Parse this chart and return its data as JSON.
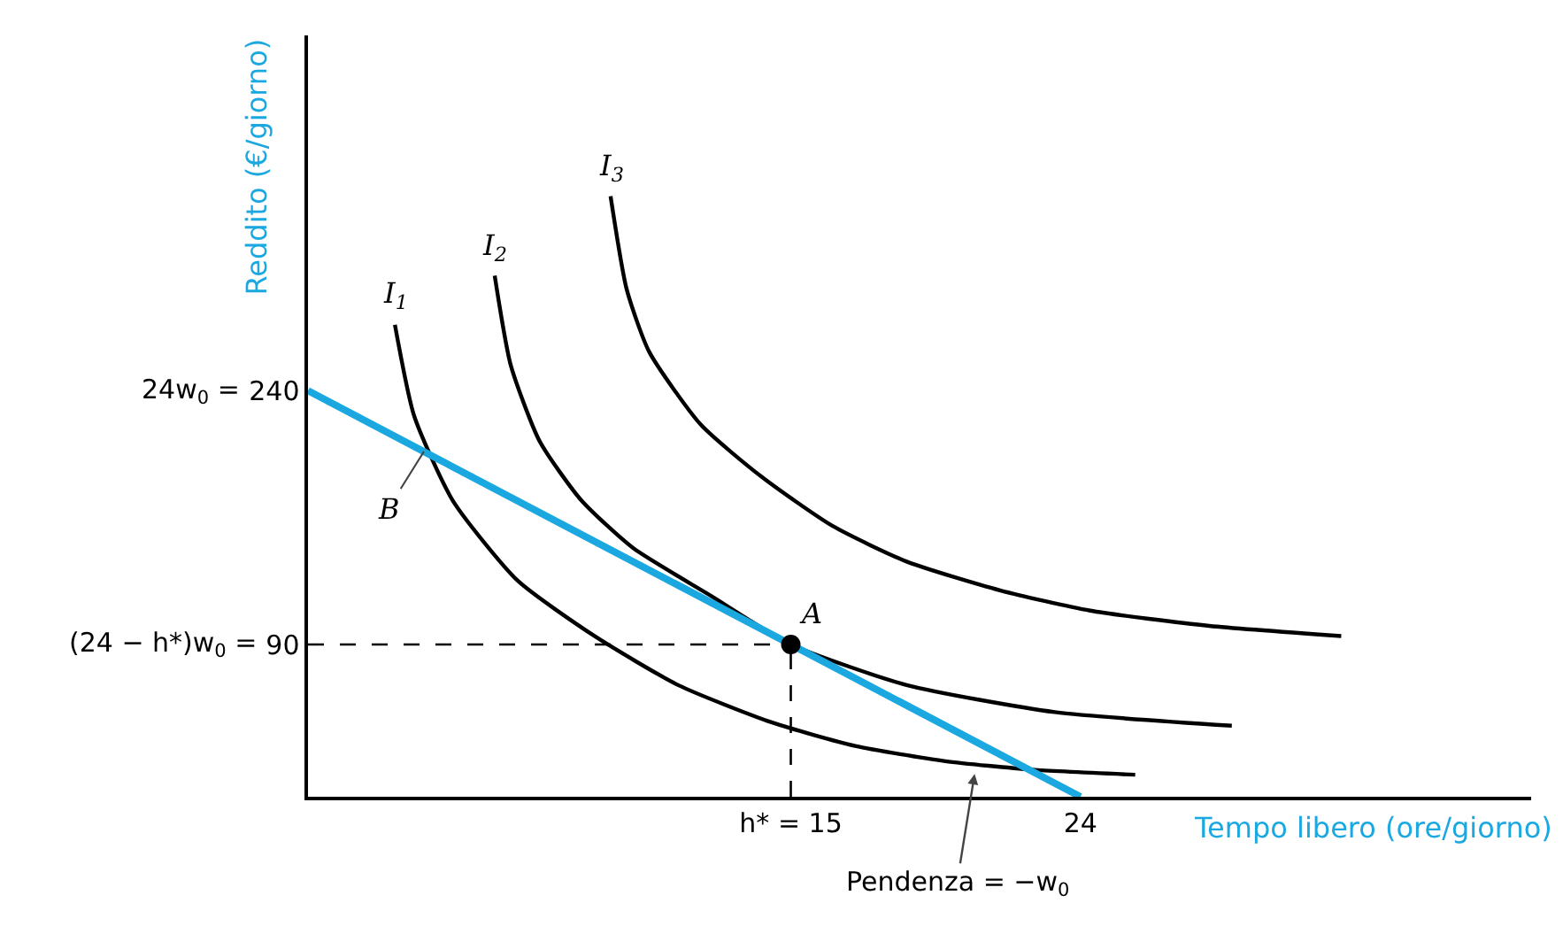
{
  "chart_data": {
    "type": "line",
    "xlabel": "Tempo libero (ore/giorno)",
    "ylabel": "Reddito (€/giorno)",
    "xlim": [
      0,
      38
    ],
    "ylim": [
      0,
      450
    ],
    "xticks": [
      {
        "value": 15,
        "label": "h* = 15"
      },
      24
    ],
    "yticks": [
      240,
      90
    ],
    "grid": false,
    "legend": false,
    "marker": "none",
    "line_style": "solid",
    "series": [
      {
        "name": "I$_{1}$",
        "color": "#000000",
        "x": [
          2.7,
          3.3,
          4.5,
          6.5,
          8.9,
          11.5,
          14.4,
          17,
          19.8,
          22.5,
          25.7
        ],
        "values": [
          279,
          225,
          175,
          128,
          95,
          66,
          44,
          30,
          21,
          16,
          13
        ]
      },
      {
        "name": "I$_{2}$",
        "color": "#000000",
        "x": [
          5.8,
          6.3,
          7.2,
          8.5,
          10.1,
          12.5,
          15,
          18.6,
          23.2,
          28.7
        ],
        "values": [
          308,
          255,
          210,
          175,
          147,
          119,
          90,
          66,
          50,
          42
        ]
      },
      {
        "name": "I$_{3}$",
        "color": "#000000",
        "x": [
          9.4,
          9.9,
          10.6,
          12.2,
          14.1,
          16.3,
          18.6,
          21.5,
          24.3,
          28,
          32.1
        ],
        "values": [
          355,
          300,
          263,
          220,
          189,
          160,
          139,
          122,
          110,
          101,
          95
        ]
      },
      {
        "name": "B",
        "color": "#1ba8e0",
        "x": [
          0,
          24
        ],
        "values": [
          240,
          0
        ]
      },
      {
        "color": "#000000",
        "x": [
          0,
          15
        ],
        "values": [
          90,
          90
        ],
        "line_style": "dashed"
      },
      {
        "color": "#000000",
        "x": [
          15,
          15
        ],
        "values": [
          0,
          90
        ],
        "line_style": "dashed"
      },
      {
        "type": "scatter",
        "color": "#000000",
        "x": [
          15
        ],
        "values": [
          90
        ],
        "marker": "circle"
      }
    ],
    "annotations": [
      {
        "text": "A",
        "x": 15,
        "y": 90
      },
      "Pendenza = −w$_{0}$",
      "24w$_{0}$ =",
      "(24 − h*)w$_{0}$ ="
    ]
  }
}
